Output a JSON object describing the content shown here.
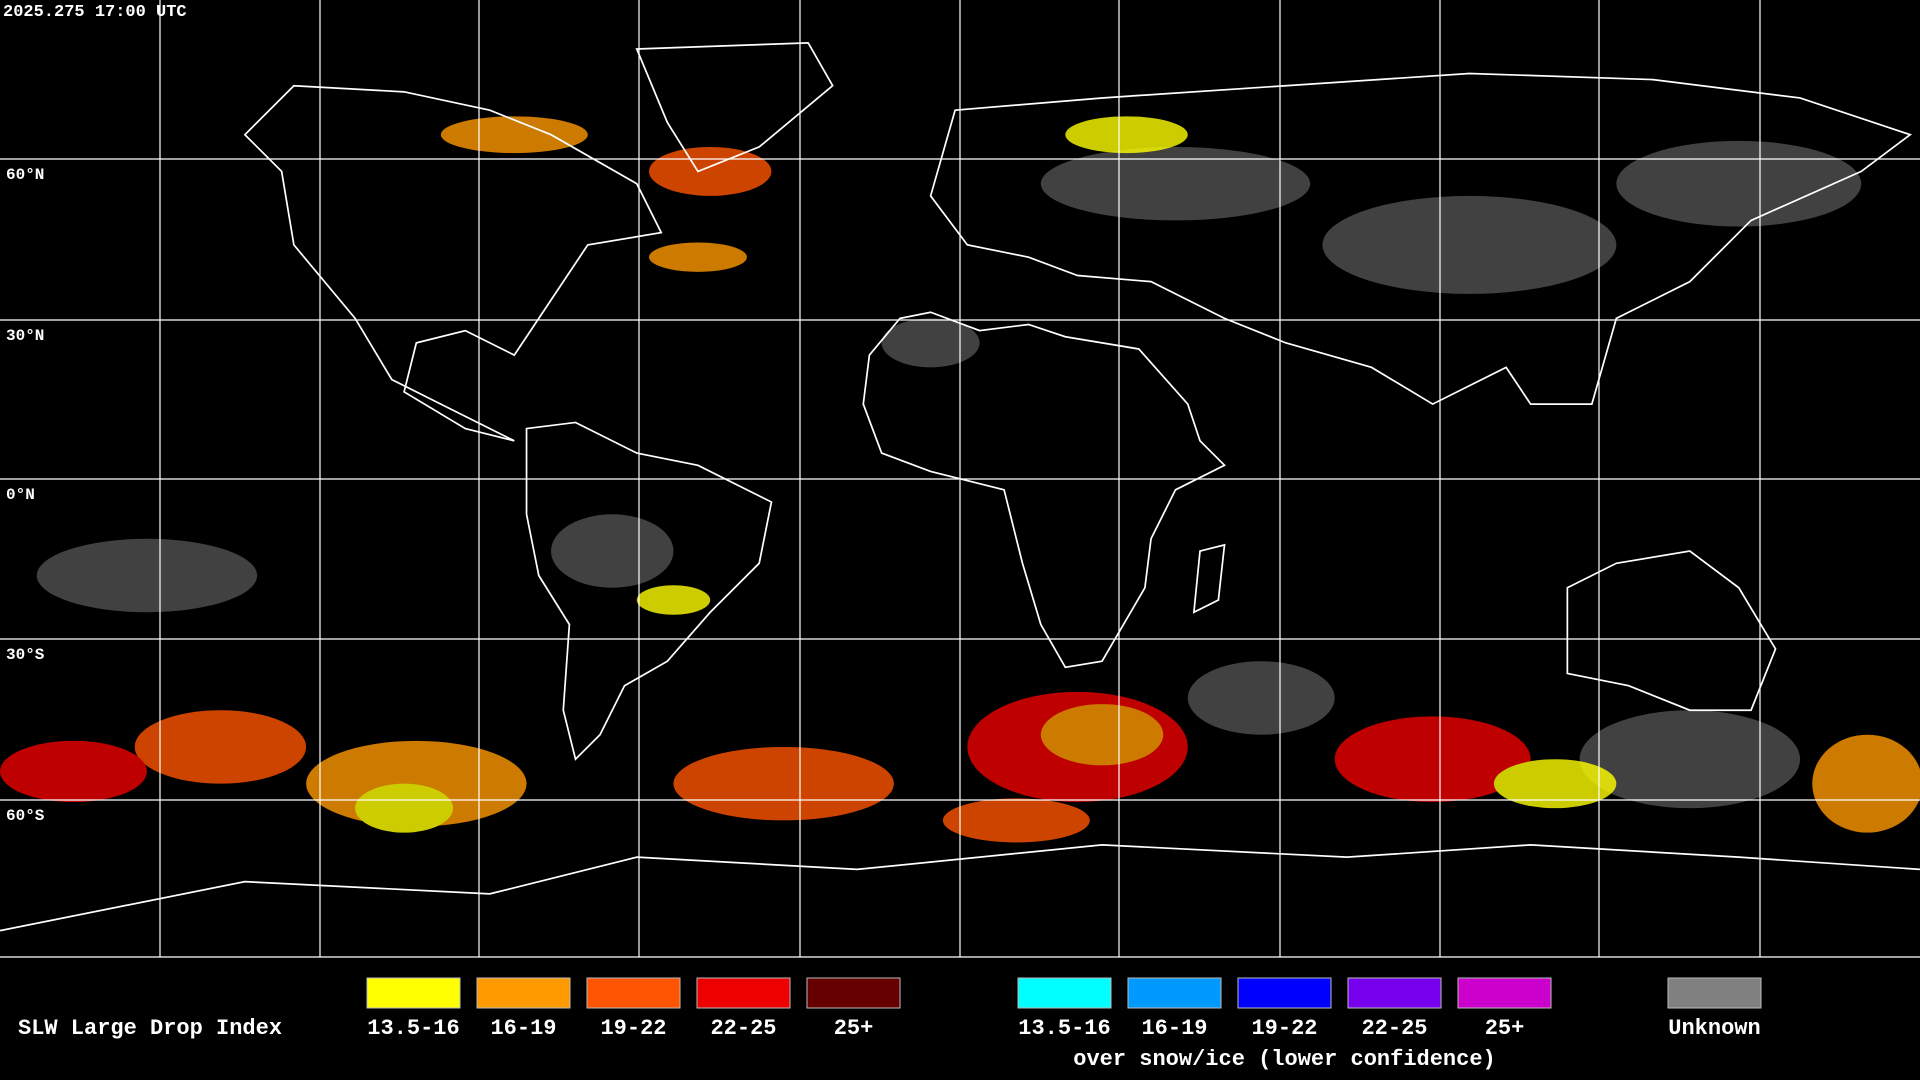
{
  "header": {
    "timestamp": "2025.275 17:00 UTC"
  },
  "map": {
    "lat_labels": [
      "60°N",
      "30°N",
      "0°N",
      "30°S",
      "60°S"
    ]
  },
  "legend": {
    "title": "SLW Large Drop Index",
    "groups": [
      {
        "items": [
          {
            "label": "13.5-16",
            "color": "#ffff00"
          },
          {
            "label": "16-19",
            "color": "#ff9900"
          },
          {
            "label": "19-22",
            "color": "#ff5500"
          },
          {
            "label": "22-25",
            "color": "#ee0000"
          },
          {
            "label": "25+",
            "color": "#660000"
          }
        ]
      },
      {
        "items": [
          {
            "label": "13.5-16",
            "color": "#00ffff"
          },
          {
            "label": "16-19",
            "color": "#0099ff"
          },
          {
            "label": "19-22",
            "color": "#0000ff"
          },
          {
            "label": "22-25",
            "color": "#7700ee"
          },
          {
            "label": "25+",
            "color": "#cc00cc"
          }
        ],
        "caption": "over snow/ice (lower confidence)"
      },
      {
        "items": [
          {
            "label": "Unknown",
            "color": "#808080"
          }
        ]
      }
    ]
  }
}
